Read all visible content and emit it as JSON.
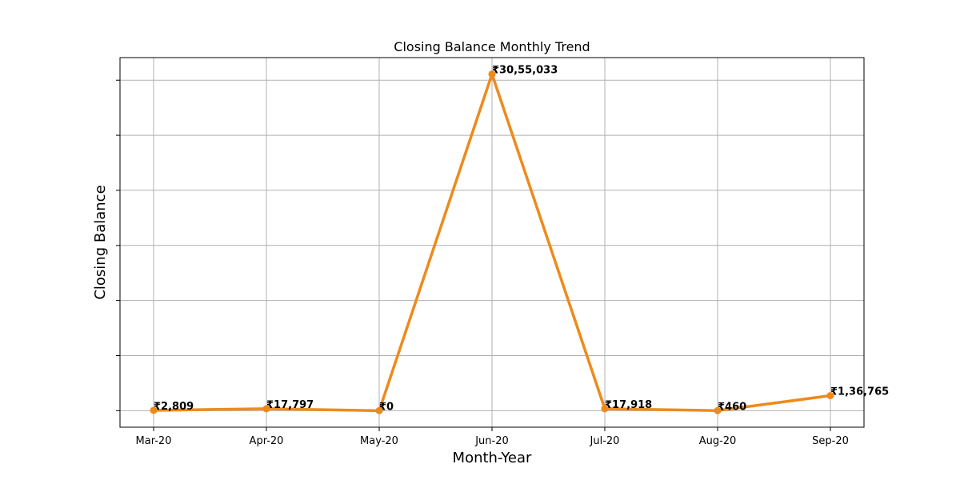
{
  "chart_data": {
    "type": "line",
    "title": "Closing Balance Monthly Trend",
    "xlabel": "Month-Year",
    "ylabel": "Closing Balance",
    "categories": [
      "Mar-20",
      "Apr-20",
      "May-20",
      "Jun-20",
      "Jul-20",
      "Aug-20",
      "Sep-20"
    ],
    "series": [
      {
        "values": [
          2809,
          17797,
          0,
          3055033,
          17918,
          460,
          136765
        ],
        "labels": [
          "₹2,809",
          "₹17,797",
          "₹0",
          "₹30,55,033",
          "₹17,918",
          "₹460",
          "₹1,36,765"
        ],
        "color": "#ee8a1c"
      }
    ],
    "ylim": [
      -150000,
      3205000
    ],
    "y_ticks": [
      0,
      500000,
      1000000,
      1500000,
      2000000,
      2500000,
      3000000
    ],
    "y_tick_labels_shown": false,
    "grid": true
  }
}
